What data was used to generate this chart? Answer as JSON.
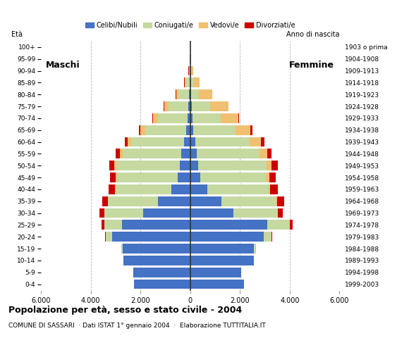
{
  "age_groups": [
    "0-4",
    "5-9",
    "10-14",
    "15-19",
    "20-24",
    "25-29",
    "30-34",
    "35-39",
    "40-44",
    "45-49",
    "50-54",
    "55-59",
    "60-64",
    "65-69",
    "70-74",
    "75-79",
    "80-84",
    "85-89",
    "90-94",
    "95-99",
    "100+"
  ],
  "birth_years": [
    "1999-2003",
    "1994-1998",
    "1989-1993",
    "1984-1988",
    "1979-1983",
    "1974-1978",
    "1969-1973",
    "1964-1968",
    "1959-1963",
    "1954-1958",
    "1949-1953",
    "1944-1948",
    "1939-1943",
    "1934-1938",
    "1929-1933",
    "1924-1928",
    "1919-1923",
    "1914-1918",
    "1909-1913",
    "1904-1908",
    "1903 o prima"
  ],
  "males_celibe": [
    2250,
    2280,
    2680,
    2700,
    3150,
    2750,
    1900,
    1300,
    750,
    500,
    430,
    350,
    260,
    160,
    100,
    80,
    50,
    30,
    15,
    10,
    5
  ],
  "males_coniugato": [
    5,
    10,
    15,
    60,
    250,
    700,
    1550,
    2000,
    2250,
    2450,
    2550,
    2350,
    2100,
    1650,
    1200,
    800,
    420,
    160,
    35,
    10,
    3
  ],
  "males_vedovo": [
    0,
    0,
    0,
    1,
    3,
    6,
    10,
    15,
    25,
    50,
    80,
    120,
    160,
    180,
    180,
    160,
    100,
    40,
    12,
    5,
    2
  ],
  "males_divorziato": [
    0,
    0,
    1,
    5,
    25,
    100,
    180,
    230,
    250,
    230,
    200,
    170,
    120,
    60,
    30,
    15,
    8,
    3,
    1,
    0,
    0
  ],
  "females_celibe": [
    2150,
    2050,
    2550,
    2550,
    2950,
    3100,
    1750,
    1250,
    700,
    400,
    330,
    250,
    200,
    130,
    80,
    60,
    40,
    20,
    10,
    5,
    3
  ],
  "females_coniugato": [
    5,
    10,
    15,
    80,
    320,
    900,
    1750,
    2200,
    2450,
    2650,
    2750,
    2550,
    2200,
    1700,
    1150,
    750,
    320,
    100,
    25,
    8,
    2
  ],
  "females_vedovo": [
    0,
    0,
    0,
    2,
    5,
    12,
    20,
    35,
    65,
    120,
    200,
    300,
    450,
    600,
    700,
    720,
    530,
    250,
    90,
    30,
    10
  ],
  "females_divorziato": [
    0,
    0,
    1,
    8,
    30,
    100,
    200,
    280,
    300,
    270,
    230,
    180,
    130,
    60,
    25,
    12,
    5,
    2,
    0,
    0,
    0
  ],
  "colors": {
    "celibe": "#4472c4",
    "coniugato": "#c5d9a0",
    "vedovo": "#f0c070",
    "divorziato": "#cc0000"
  },
  "legend_labels": [
    "Celibi/Nubili",
    "Coniugati/e",
    "Vedovi/e",
    "Divorziati/e"
  ],
  "title": "Popolazione per età, sesso e stato civile - 2004",
  "subtitle": "COMUNE DI SASSARI  · Dati ISTAT 1° gennaio 2004  ·  Elaborazione TUTTITALIA.IT",
  "xlim": 6000,
  "bg_color": "#ffffff",
  "grid_color": "#999999"
}
